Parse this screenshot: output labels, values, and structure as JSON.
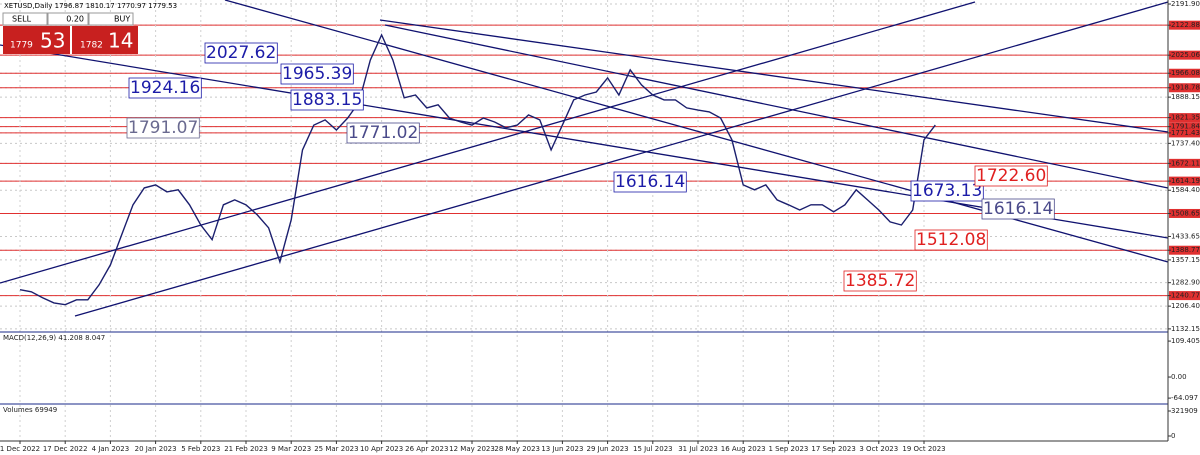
{
  "header": {
    "text": "XETUSD,Daily  1796.87 1810.17 1770.97 1779.53"
  },
  "trade_panel": {
    "sell": "SELL",
    "buy": "BUY",
    "volume": "0.20",
    "sell_big": "1779",
    "sell_small": "53",
    "buy_big": "1782",
    "buy_small": "14"
  },
  "chart_data": {
    "type": "line",
    "color": "#1b1f6e",
    "level_color": "#e03030",
    "grid": true,
    "ylim": [
      1122,
      2205
    ],
    "yticks": [
      {
        "value": 2191.9,
        "label": "2191.90"
      },
      2122.88,
      2025.06,
      1966.08,
      1918.78,
      1888.15,
      1821.35,
      1791.84,
      1771.43,
      {
        "value": 1737.4,
        "label": "1737.40"
      },
      1672.11,
      1614.19,
      {
        "value": 1584.4,
        "label": "1584.40"
      },
      1508.65,
      1433.65,
      1388.77,
      1357.15,
      {
        "value": 1282.9,
        "label": "1282.90"
      },
      1240.77,
      {
        "value": 1206.4,
        "label": "1206.40"
      },
      1132.15
    ],
    "levels": [
      2122.88,
      2025.06,
      1966.08,
      1918.78,
      1821.35,
      1791.84,
      1771.43,
      1672.11,
      1614.19,
      1508.65,
      1388.77,
      1240.77
    ],
    "categories": [
      "1 Dec 2022",
      null,
      null,
      null,
      "17 Dec 2022",
      null,
      null,
      null,
      "4 Jan 2023",
      null,
      null,
      null,
      "20 Jan 2023",
      null,
      null,
      null,
      "5 Feb 2023",
      null,
      null,
      null,
      "21 Feb 2023",
      null,
      null,
      null,
      "9 Mar 2023",
      null,
      null,
      null,
      "25 Mar 2023",
      null,
      null,
      null,
      "10 Apr 2023",
      null,
      null,
      null,
      "26 Apr 2023",
      null,
      null,
      null,
      "12 May 2023",
      null,
      null,
      null,
      "28 May 2023",
      null,
      null,
      null,
      "13 Jun 2023",
      null,
      null,
      null,
      "29 Jun 2023",
      null,
      null,
      null,
      "15 Jul 2023",
      null,
      null,
      null,
      "31 Jul 2023",
      null,
      null,
      null,
      "16 Aug 2023",
      null,
      null,
      null,
      "1 Sep 2023",
      null,
      null,
      null,
      "17 Sep 2023",
      null,
      null,
      null,
      "3 Oct 2023",
      null,
      null,
      null,
      "19 Oct 2023",
      null
    ],
    "values": [
      1260,
      1253,
      1234,
      1217,
      1211,
      1227,
      1227,
      1276,
      1341,
      1439,
      1537,
      1592,
      1602,
      1579,
      1586,
      1537,
      1471,
      1423,
      1537,
      1553,
      1537,
      1504,
      1462,
      1351,
      1488,
      1716,
      1797,
      1814,
      1781,
      1820,
      1872,
      2009,
      2091,
      2009,
      1886,
      1895,
      1853,
      1863,
      1820,
      1807,
      1797,
      1820,
      1807,
      1788,
      1797,
      1830,
      1814,
      1716,
      1797,
      1879,
      1895,
      1905,
      1951,
      1895,
      1977,
      1928,
      1895,
      1879,
      1879,
      1853,
      1846,
      1840,
      1820,
      1749,
      1602,
      1586,
      1602,
      1553,
      1537,
      1520,
      1537,
      1537,
      1514,
      1537,
      1586,
      1553,
      1520,
      1481,
      1471,
      1520,
      1749,
      1797
    ]
  },
  "annotations": [
    {
      "text": "2027.62",
      "color": "#1c1ca8"
    },
    {
      "text": "1965.39",
      "color": "#1c1ca8"
    },
    {
      "text": "1924.16",
      "color": "#1c1ca8"
    },
    {
      "text": "1883.15",
      "color": "#1c1ca8"
    },
    {
      "text": "1791.07",
      "color": "#6a6a90"
    },
    {
      "text": "1771.02",
      "color": "#4a4a8a"
    },
    {
      "text": "1616.14",
      "color": "#1c1ca8"
    },
    {
      "text": "1673.13",
      "color": "#1c1ca8"
    },
    {
      "text": "1722.60",
      "color": "#e02020"
    },
    {
      "text": "1616.14",
      "color": "#4a4a8a"
    },
    {
      "text": "1512.08",
      "color": "#e02020"
    },
    {
      "text": "1385.72",
      "color": "#e02020"
    }
  ],
  "macd": {
    "label": "MACD(12,26,9) 41.208 8.047",
    "ylim": [
      -79,
      134
    ],
    "yticks": [
      109.405,
      {
        "value": 0,
        "label": "0.00"
      },
      -64.097
    ]
  },
  "volume": {
    "label": "Volumes 69949",
    "ylim": [
      -51500,
      399000
    ],
    "yticks": [
      321909,
      0
    ]
  }
}
